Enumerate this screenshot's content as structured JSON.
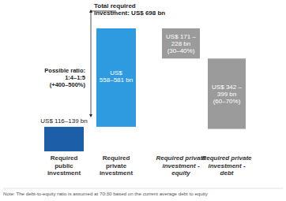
{
  "chart_data": {
    "type": "waterfall",
    "categories": [
      "Required\npublic\ninvestment",
      "Required\nprivate\ninvestment",
      "Required private\ninvestment -\nequity",
      "Required private\ninvestment -\ndebt"
    ],
    "values": [
      139,
      558,
      171,
      399
    ],
    "value_labels": [
      "US$ 116–139 bn",
      "US$ 558–581 bn",
      "US$ 171 – 228 bn (30–40%)",
      "US$ 342 – 399 bn (60–70%)"
    ],
    "colors": [
      "#1d5ea8",
      "#2e9be0",
      "#9b9b9b",
      "#9b9b9b"
    ],
    "data_labels": true,
    "tick_labels": false,
    "annotations": [
      "Total required investment: US$ 698 bn",
      "Possible ratio: 1:4–1:5 (+400–500%)"
    ],
    "note": "Note: The debt-to-equity ratio is assumed at 70:30 based on the current average debt to equity"
  }
}
